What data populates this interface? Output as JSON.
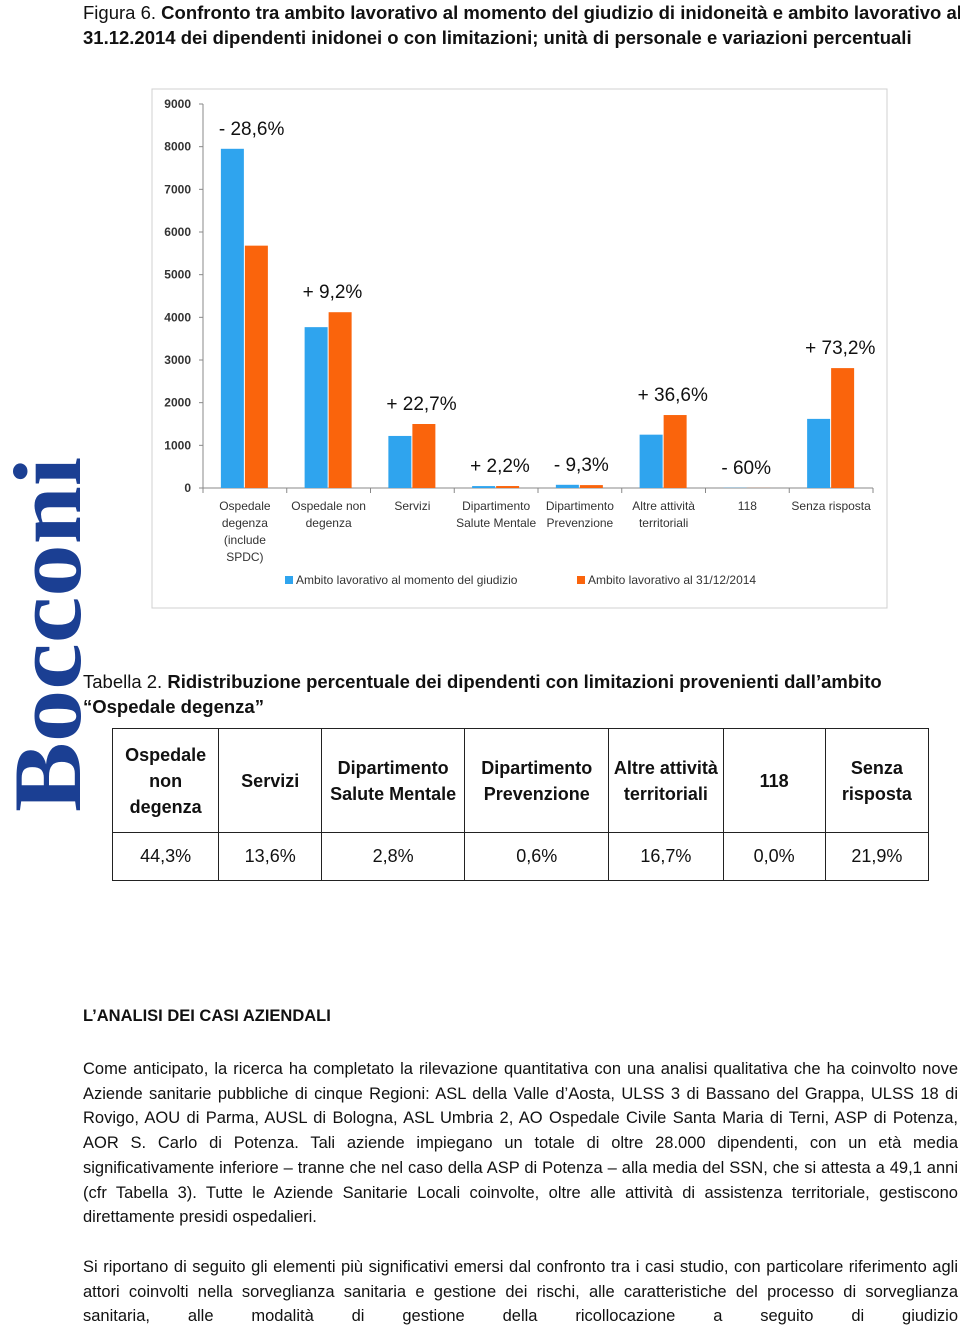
{
  "figure_caption": {
    "label": "Figura 6.",
    "text": "Confronto tra ambito lavorativo al momento del giudizio di inidoneità e ambito lavorativo al 31.12.2014 dei dipendenti inidonei o con limitazioni; unità di personale e variazioni percentuali"
  },
  "chart_data": {
    "type": "bar",
    "categories": [
      "Ospedale degenza (include SPDC)",
      "Ospedale non degenza",
      "Servizi",
      "Dipartimento Salute Mentale",
      "Dipartimento Prevenzione",
      "Altre attività territoriali",
      "118",
      "Senza risposta"
    ],
    "series": [
      {
        "name": "Ambito lavorativo al momento del giudizio",
        "color": "#2fa4ee",
        "values": [
          7950,
          3770,
          1220,
          45,
          75,
          1250,
          5,
          1620
        ]
      },
      {
        "name": "Ambito lavorativo al 31/12/2014",
        "color": "#fa640c",
        "values": [
          5680,
          4120,
          1500,
          46,
          68,
          1710,
          2,
          2810
        ]
      }
    ],
    "annotations": [
      "- 28,6%",
      "+ 9,2%",
      "+ 22,7%",
      "+ 2,2%",
      "- 9,3%",
      "+ 36,6%",
      "- 60%",
      "+ 73,2%"
    ],
    "ylim": [
      0,
      9000
    ],
    "yticks": [
      0,
      1000,
      2000,
      3000,
      4000,
      5000,
      6000,
      7000,
      8000,
      9000
    ],
    "grid": false,
    "legend": "bottom"
  },
  "side_logo": "Bocconi",
  "table_caption": {
    "label": "Tabella 2.",
    "text": "Ridistribuzione percentuale dei dipendenti con limitazioni provenienti dall’ambito “Ospedale degenza”"
  },
  "table": {
    "header": [
      "Ospedale non degenza",
      "Servizi",
      "Dipartimento Salute Mentale",
      "Dipartimento Prevenzione",
      "Altre attività territoriali",
      "118",
      "Senza risposta"
    ],
    "rows": [
      [
        "44,3%",
        "13,6%",
        "2,8%",
        "0,6%",
        "16,7%",
        "0,0%",
        "21,9%"
      ]
    ]
  },
  "section": {
    "title": "L’ANALISI DEI CASI AZIENDALI",
    "paragraphs": [
      "Come anticipato, la ricerca ha completato la rilevazione quantitativa con una analisi qualitativa che ha coinvolto nove Aziende sanitarie pubbliche di cinque Regioni: ASL della Valle d’Aosta, ULSS 3 di Bassano del Grappa, ULSS 18 di Rovigo, AOU di Parma, AUSL di Bologna, ASL Umbria 2, AO Ospedale Civile Santa Maria di Terni, ASP di Potenza, AOR S. Carlo di Potenza. Tali aziende impiegano un totale di oltre 28.000 dipendenti, con un età media significativamente inferiore – tranne che nel caso della ASP di Potenza – alla media del SSN, che si attesta a 49,1 anni (cfr Tabella 3). Tutte le Aziende Sanitarie Locali coinvolte, oltre alle attività di assistenza territoriale, gestiscono direttamente presidi ospedalieri.",
      "Si riportano di seguito gli elementi più significativi emersi dal confronto tra i casi studio, con particolare riferimento agli attori coinvolti nella sorveglianza sanitaria e gestione dei rischi, alle caratteristiche del processo di sorveglianza sanitaria, alle modalità di gestione della ricollocazione a seguito di giudizio"
    ]
  }
}
